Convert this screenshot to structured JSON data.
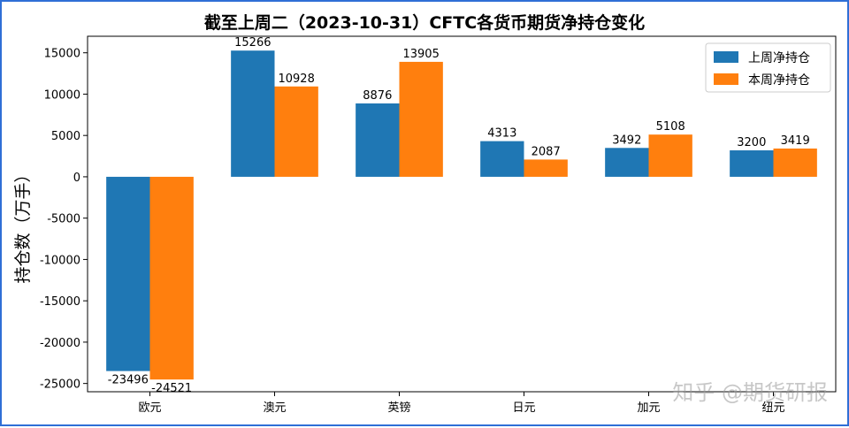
{
  "chart_data": {
    "type": "bar",
    "title": "截至上周二（2023-10-31）CFTC各货币期货净持仓变化",
    "xlabel": "",
    "ylabel": "持仓数（万手）",
    "categories": [
      "欧元",
      "澳元",
      "英镑",
      "日元",
      "加元",
      "纽元"
    ],
    "series": [
      {
        "name": "上周净持仓",
        "values": [
          -23496,
          15266,
          8876,
          4313,
          3492,
          3200
        ],
        "color": "#1f77b4"
      },
      {
        "name": "本周净持仓",
        "values": [
          -24521,
          10928,
          13905,
          2087,
          5108,
          3419
        ],
        "color": "#ff7f0e"
      }
    ],
    "ylim": [
      -26000,
      17000
    ],
    "yticks": [
      -25000,
      -20000,
      -15000,
      -10000,
      -5000,
      0,
      5000,
      10000,
      15000
    ],
    "grid": false,
    "legend_position": "top-right"
  },
  "watermark": "知乎 @期货研报"
}
